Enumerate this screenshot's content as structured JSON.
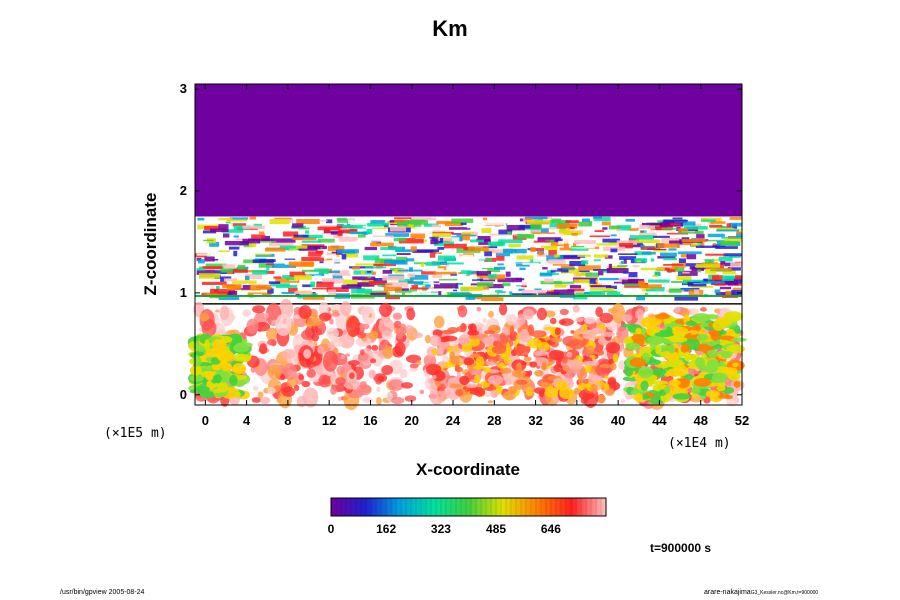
{
  "chart_data": {
    "type": "heatmap",
    "title": "Km",
    "xlabel": "X-coordinate",
    "ylabel": "Z-coordinate",
    "x_ticks": [
      "0",
      "4",
      "8",
      "12",
      "16",
      "20",
      "24",
      "28",
      "32",
      "36",
      "40",
      "44",
      "48",
      "52"
    ],
    "y_ticks": [
      "0",
      "1",
      "2",
      "3"
    ],
    "xlim": [
      -1,
      52
    ],
    "ylim": [
      -0.1,
      3.05
    ],
    "x_unit": "(×1E4 m)",
    "y_unit": "(×1E5 m)",
    "colorbar": {
      "ticks": [
        "0",
        "162",
        "323",
        "485",
        "646"
      ],
      "range": [
        0,
        808
      ],
      "colors": [
        "#7000a0",
        "#2020d0",
        "#00a0e0",
        "#00e0a0",
        "#40d040",
        "#e0e000",
        "#ff8000",
        "#ff2020",
        "#ffc0c0"
      ]
    },
    "time_label": "t=900000 s",
    "field_description": {
      "upper_layer_z": [
        1.75,
        3.05
      ],
      "upper_layer_value": 0,
      "turbulent_band_z": [
        0.95,
        1.75
      ],
      "lower_layer_z": [
        -0.1,
        0.85
      ]
    }
  },
  "footer": {
    "left": "/usr/bin/gpview 2005-08-24",
    "right_main": "arare-nakajima",
    "right_sub": "G3_Kessler.nc@Km,t=900000"
  }
}
